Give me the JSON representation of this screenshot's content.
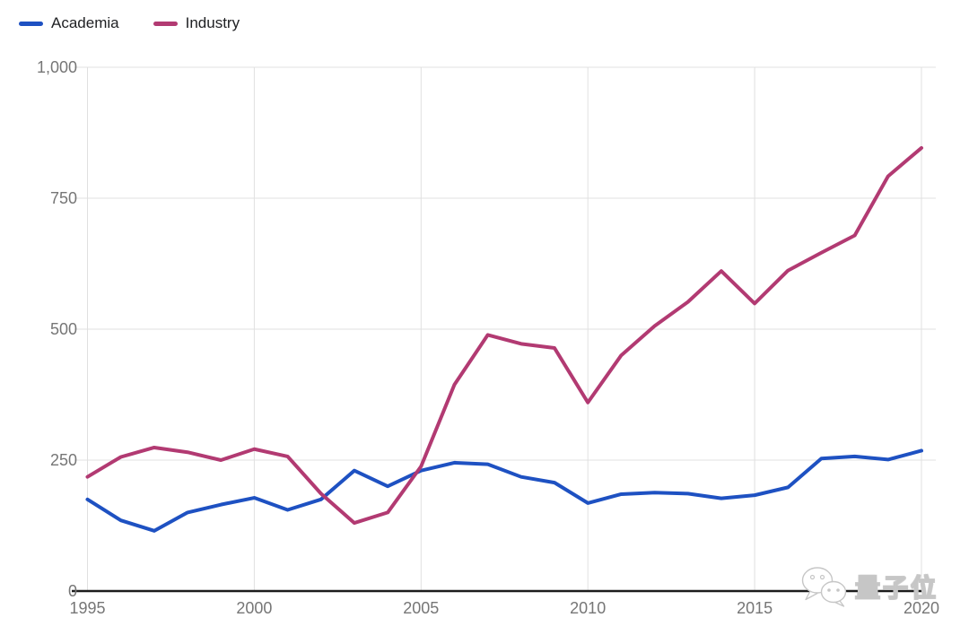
{
  "legend": {
    "position": "top-left",
    "items": [
      {
        "label": "Academia"
      },
      {
        "label": "Industry"
      }
    ]
  },
  "watermark": {
    "text": "量子位",
    "icon": "wechat-chat-bubbles-icon"
  },
  "chart_data": {
    "type": "line",
    "title": "",
    "xlabel": "",
    "ylabel": "",
    "x": [
      1995,
      1996,
      1997,
      1998,
      1999,
      2000,
      2001,
      2002,
      2003,
      2004,
      2005,
      2006,
      2007,
      2008,
      2009,
      2010,
      2011,
      2012,
      2013,
      2014,
      2015,
      2016,
      2017,
      2018,
      2019,
      2020
    ],
    "series": [
      {
        "name": "Academia",
        "color": "#1e51c2",
        "values": [
          175,
          135,
          115,
          150,
          165,
          178,
          155,
          175,
          230,
          200,
          230,
          245,
          242,
          218,
          207,
          168,
          185,
          188,
          186,
          177,
          183,
          198,
          253,
          257,
          251,
          268
        ]
      },
      {
        "name": "Industry",
        "color": "#b23a72",
        "values": [
          218,
          256,
          274,
          265,
          250,
          271,
          257,
          186,
          130,
          150,
          238,
          394,
          489,
          472,
          464,
          360,
          450,
          506,
          552,
          611,
          549,
          612,
          646,
          679,
          792,
          846
        ]
      }
    ],
    "xlim": [
      1995,
      2020
    ],
    "ylim": [
      0,
      1000
    ],
    "y_ticks": [
      0,
      250,
      500,
      750,
      1000
    ],
    "y_tick_labels": [
      "0",
      "250",
      "500",
      "750",
      "1,000"
    ],
    "x_tick_labels": [
      "1995",
      "2000",
      "2005",
      "2010",
      "2015",
      "2020"
    ],
    "grid": true,
    "legend_position": "top-left",
    "colors": {
      "grid": "#e0e0e0",
      "axis_line": "#1c1c1c",
      "tick_label": "#767676",
      "legend_text": "#202124"
    }
  }
}
